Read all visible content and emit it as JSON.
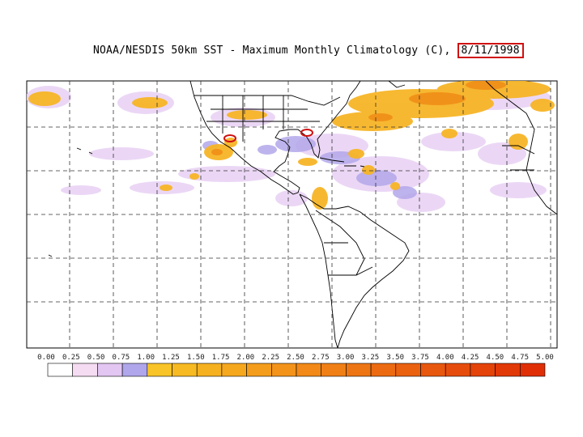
{
  "title": {
    "text": "NOAA/NESDIS 50km SST - Maximum Monthly Climatology (C),",
    "date": "8/11/1998"
  },
  "legend": {
    "ticks": [
      "0.00",
      "0.25",
      "0.50",
      "0.75",
      "1.00",
      "1.25",
      "1.50",
      "1.75",
      "2.00",
      "2.25",
      "2.50",
      "2.75",
      "3.00",
      "3.25",
      "3.50",
      "3.75",
      "4.00",
      "4.25",
      "4.50",
      "4.75",
      "5.00"
    ],
    "colors": [
      "#ffffff",
      "#f5dcf2",
      "#e3c6f2",
      "#b0a6ec",
      "#f8c428",
      "#f7ba22",
      "#f6b120",
      "#f5a71e",
      "#f49d1c",
      "#f3931a",
      "#f28918",
      "#f07f16",
      "#ee7514",
      "#ec6b12",
      "#ea6110",
      "#e8570e",
      "#e64d0c",
      "#e4430a",
      "#e23908",
      "#e02f06"
    ]
  },
  "colors": {
    "land_outline": "#000000",
    "grid_line": "#333333",
    "highlight_marker": "#d01010"
  }
}
